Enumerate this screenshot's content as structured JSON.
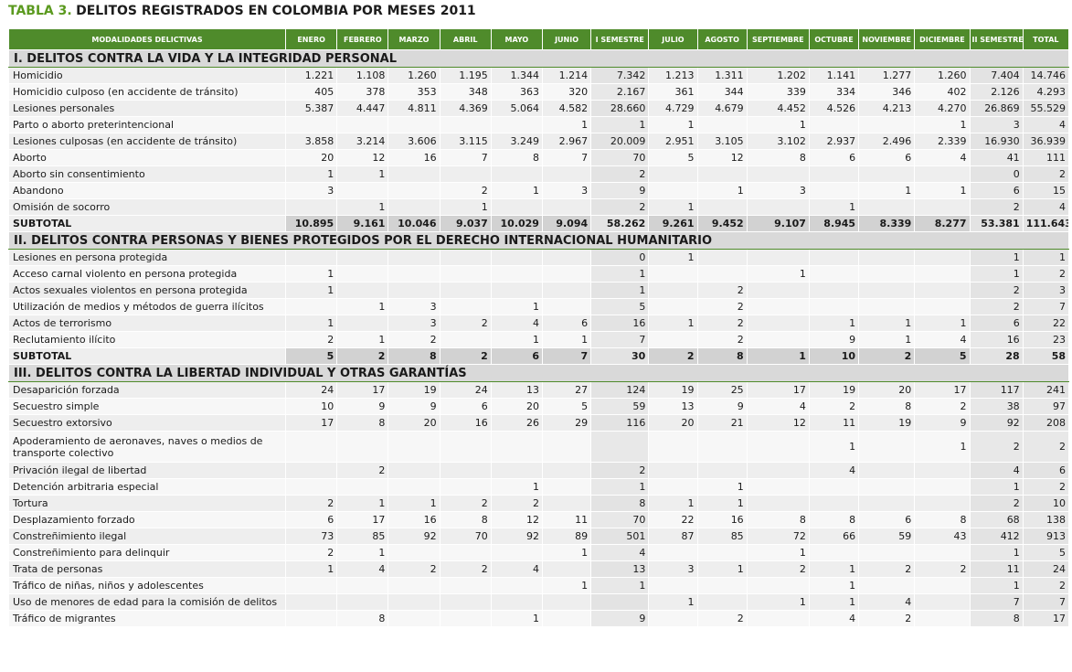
{
  "title": {
    "prefix": "TABLA 3.",
    "text": "DELITOS REGISTRADOS EN COLOMBIA POR MESES 2011"
  },
  "headers": [
    "MODALIDADES DELICTIVAS",
    "ENERO",
    "FEBRERO",
    "MARZO",
    "ABRIL",
    "MAYO",
    "JUNIO",
    "I SEMESTRE",
    "JULIO",
    "AGOSTO",
    "SEPTIEMBRE",
    "OCTUBRE",
    "NOVIEMBRE",
    "DICIEMBRE",
    "II SEMESTRE",
    "TOTAL"
  ],
  "sections": [
    {
      "title": "I. DELITOS CONTRA LA VIDA Y LA INTEGRIDAD PERSONAL",
      "rows": [
        {
          "label": "Homicidio",
          "values": [
            "1.221",
            "1.108",
            "1.260",
            "1.195",
            "1.344",
            "1.214",
            "7.342",
            "1.213",
            "1.311",
            "1.202",
            "1.141",
            "1.277",
            "1.260",
            "7.404",
            "14.746"
          ]
        },
        {
          "label": "Homicidio culposo (en accidente de tránsito)",
          "values": [
            "405",
            "378",
            "353",
            "348",
            "363",
            "320",
            "2.167",
            "361",
            "344",
            "339",
            "334",
            "346",
            "402",
            "2.126",
            "4.293"
          ]
        },
        {
          "label": "Lesiones personales",
          "values": [
            "5.387",
            "4.447",
            "4.811",
            "4.369",
            "5.064",
            "4.582",
            "28.660",
            "4.729",
            "4.679",
            "4.452",
            "4.526",
            "4.213",
            "4.270",
            "26.869",
            "55.529"
          ]
        },
        {
          "label": "Parto o aborto preterintencional",
          "values": [
            "",
            "",
            "",
            "",
            "",
            "1",
            "1",
            "1",
            "",
            "1",
            "",
            "",
            "1",
            "3",
            "4"
          ]
        },
        {
          "label": "Lesiones culposas (en accidente de tránsito)",
          "values": [
            "3.858",
            "3.214",
            "3.606",
            "3.115",
            "3.249",
            "2.967",
            "20.009",
            "2.951",
            "3.105",
            "3.102",
            "2.937",
            "2.496",
            "2.339",
            "16.930",
            "36.939"
          ]
        },
        {
          "label": "Aborto",
          "values": [
            "20",
            "12",
            "16",
            "7",
            "8",
            "7",
            "70",
            "5",
            "12",
            "8",
            "6",
            "6",
            "4",
            "41",
            "111"
          ]
        },
        {
          "label": "Aborto sin consentimiento",
          "values": [
            "1",
            "1",
            "",
            "",
            "",
            "",
            "2",
            "",
            "",
            "",
            "",
            "",
            "",
            "0",
            "2"
          ]
        },
        {
          "label": "Abandono",
          "values": [
            "3",
            "",
            "",
            "2",
            "1",
            "3",
            "9",
            "",
            "1",
            "3",
            "",
            "1",
            "1",
            "6",
            "15"
          ]
        },
        {
          "label": "Omisión de socorro",
          "values": [
            "",
            "1",
            "",
            "1",
            "",
            "",
            "2",
            "1",
            "",
            "",
            "1",
            "",
            "",
            "2",
            "4"
          ]
        }
      ],
      "subtotal": {
        "label": "SUBTOTAL",
        "values": [
          "10.895",
          "9.161",
          "10.046",
          "9.037",
          "10.029",
          "9.094",
          "58.262",
          "9.261",
          "9.452",
          "9.107",
          "8.945",
          "8.339",
          "8.277",
          "53.381",
          "111.643"
        ]
      }
    },
    {
      "title": "II. DELITOS CONTRA PERSONAS Y BIENES PROTEGIDOS POR EL DERECHO INTERNACIONAL HUMANITARIO",
      "rows": [
        {
          "label": "Lesiones en persona protegida",
          "values": [
            "",
            "",
            "",
            "",
            "",
            "",
            "0",
            "1",
            "",
            "",
            "",
            "",
            "",
            "1",
            "1"
          ]
        },
        {
          "label": "Acceso carnal violento en persona protegida",
          "values": [
            "1",
            "",
            "",
            "",
            "",
            "",
            "1",
            "",
            "",
            "1",
            "",
            "",
            "",
            "1",
            "2"
          ]
        },
        {
          "label": "Actos sexuales violentos en persona protegida",
          "values": [
            "1",
            "",
            "",
            "",
            "",
            "",
            "1",
            "",
            "2",
            "",
            "",
            "",
            "",
            "2",
            "3"
          ]
        },
        {
          "label": "Utilización de medios y métodos de guerra ilícitos",
          "values": [
            "",
            "1",
            "3",
            "",
            "1",
            "",
            "5",
            "",
            "2",
            "",
            "",
            "",
            "",
            "2",
            "7"
          ]
        },
        {
          "label": "Actos de terrorismo",
          "values": [
            "1",
            "",
            "3",
            "2",
            "4",
            "6",
            "16",
            "1",
            "2",
            "",
            "1",
            "1",
            "1",
            "6",
            "22"
          ]
        },
        {
          "label": "Reclutamiento ilícito",
          "values": [
            "2",
            "1",
            "2",
            "",
            "1",
            "1",
            "7",
            "",
            "2",
            "",
            "9",
            "1",
            "4",
            "16",
            "23"
          ]
        }
      ],
      "subtotal": {
        "label": "SUBTOTAL",
        "values": [
          "5",
          "2",
          "8",
          "2",
          "6",
          "7",
          "30",
          "2",
          "8",
          "1",
          "10",
          "2",
          "5",
          "28",
          "58"
        ]
      }
    },
    {
      "title": "III. DELITOS CONTRA LA LIBERTAD INDIVIDUAL Y OTRAS GARANTÍAS",
      "rows": [
        {
          "label": "Desaparición forzada",
          "values": [
            "24",
            "17",
            "19",
            "24",
            "13",
            "27",
            "124",
            "19",
            "25",
            "17",
            "19",
            "20",
            "17",
            "117",
            "241"
          ]
        },
        {
          "label": "Secuestro simple",
          "values": [
            "10",
            "9",
            "9",
            "6",
            "20",
            "5",
            "59",
            "13",
            "9",
            "4",
            "2",
            "8",
            "2",
            "38",
            "97"
          ]
        },
        {
          "label": "Secuestro extorsivo",
          "values": [
            "17",
            "8",
            "20",
            "16",
            "26",
            "29",
            "116",
            "20",
            "21",
            "12",
            "11",
            "19",
            "9",
            "92",
            "208"
          ]
        },
        {
          "label": "Apoderamiento de aeronaves, naves o medios de transporte colectivo",
          "values": [
            "",
            "",
            "",
            "",
            "",
            "",
            "",
            "",
            "",
            "",
            "1",
            "",
            "1",
            "2",
            "2"
          ],
          "tall": true
        },
        {
          "label": "Privación ilegal de libertad",
          "values": [
            "",
            "2",
            "",
            "",
            "",
            "",
            "2",
            "",
            "",
            "",
            "4",
            "",
            "",
            "4",
            "6"
          ]
        },
        {
          "label": "Detención arbitraria especial",
          "values": [
            "",
            "",
            "",
            "",
            "1",
            "",
            "1",
            "",
            "1",
            "",
            "",
            "",
            "",
            "1",
            "2"
          ]
        },
        {
          "label": "Tortura",
          "values": [
            "2",
            "1",
            "1",
            "2",
            "2",
            "",
            "8",
            "1",
            "1",
            "",
            "",
            "",
            "",
            "2",
            "10"
          ]
        },
        {
          "label": "Desplazamiento forzado",
          "values": [
            "6",
            "17",
            "16",
            "8",
            "12",
            "11",
            "70",
            "22",
            "16",
            "8",
            "8",
            "6",
            "8",
            "68",
            "138"
          ]
        },
        {
          "label": "Constreñimiento ilegal",
          "values": [
            "73",
            "85",
            "92",
            "70",
            "92",
            "89",
            "501",
            "87",
            "85",
            "72",
            "66",
            "59",
            "43",
            "412",
            "913"
          ]
        },
        {
          "label": "Constreñimiento para delinquir",
          "values": [
            "2",
            "1",
            "",
            "",
            "",
            "1",
            "4",
            "",
            "",
            "1",
            "",
            "",
            "",
            "1",
            "5"
          ]
        },
        {
          "label": "Trata de personas",
          "values": [
            "1",
            "4",
            "2",
            "2",
            "4",
            "",
            "13",
            "3",
            "1",
            "2",
            "1",
            "2",
            "2",
            "11",
            "24"
          ]
        },
        {
          "label": "Tráfico de niñas, niños y adolescentes",
          "values": [
            "",
            "",
            "",
            "",
            "",
            "1",
            "1",
            "",
            "",
            "",
            "1",
            "",
            "",
            "1",
            "2"
          ]
        },
        {
          "label": "Uso de menores de edad para la comisión de delitos",
          "values": [
            "",
            "",
            "",
            "",
            "",
            "",
            "",
            "1",
            "",
            "1",
            "1",
            "4",
            "",
            "7",
            "7"
          ]
        },
        {
          "label": "Tráfico de migrantes",
          "values": [
            "",
            "8",
            "",
            "",
            "1",
            "",
            "9",
            "",
            "2",
            "",
            "4",
            "2",
            "",
            "8",
            "17"
          ]
        }
      ]
    }
  ]
}
